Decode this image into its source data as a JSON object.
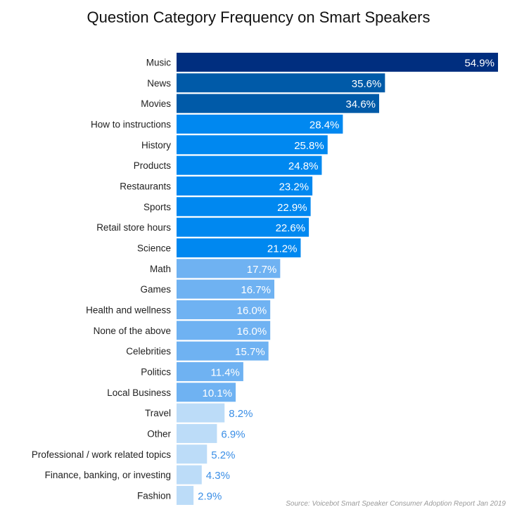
{
  "chart_data": {
    "type": "bar",
    "orientation": "horizontal",
    "title": "Question Category Frequency on Smart Speakers",
    "source": "Source: Voicebot Smart Speaker Consumer Adoption Report Jan 2019",
    "categories": [
      "Music",
      "News",
      "Movies",
      "How to instructions",
      "History",
      "Products",
      "Restaurants",
      "Sports",
      "Retail store hours",
      "Science",
      "Math",
      "Games",
      "Health and wellness",
      "None of the above",
      "Celebrities",
      "Politics",
      "Local Business",
      "Travel",
      "Other",
      "Professional / work related topics",
      "Finance, banking, or investing",
      "Fashion"
    ],
    "values": [
      54.9,
      35.6,
      34.6,
      28.4,
      25.8,
      24.8,
      23.2,
      22.9,
      22.6,
      21.2,
      17.7,
      16.7,
      16.0,
      16.0,
      15.7,
      11.4,
      10.1,
      8.2,
      6.9,
      5.2,
      4.3,
      2.9
    ],
    "data_labels": [
      "54.9%",
      "35.6%",
      "34.6%",
      "28.4%",
      "25.8%",
      "24.8%",
      "23.2%",
      "22.9%",
      "22.6%",
      "21.2%",
      "17.7%",
      "16.7%",
      "16.0%",
      "16.0%",
      "15.7%",
      "11.4%",
      "10.1%",
      "8.2%",
      "6.9%",
      "5.2%",
      "4.3%",
      "2.9%"
    ],
    "unit": "%",
    "xlim": [
      0,
      55
    ],
    "grid": false,
    "legend": "none",
    "colors": [
      "#002e7f",
      "#005aa8",
      "#005aa8",
      "#0088f0",
      "#0088f0",
      "#0088f0",
      "#0088f0",
      "#0088f0",
      "#0088f0",
      "#0088f0",
      "#6fb2f2",
      "#6fb2f2",
      "#6fb2f2",
      "#6fb2f2",
      "#6fb2f2",
      "#6fb2f2",
      "#6fb2f2",
      "#bcdcf8",
      "#bcdcf8",
      "#bcdcf8",
      "#bcdcf8",
      "#bcdcf8"
    ],
    "outside_label_color": "#3a8ee6"
  }
}
